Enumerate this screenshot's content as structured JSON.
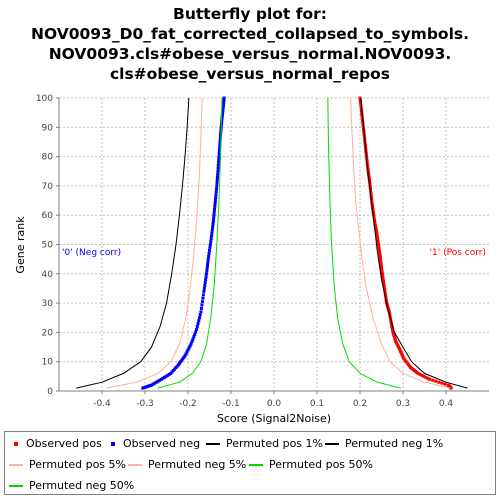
{
  "title_lines": [
    "Butterfly plot for:",
    "NOV0093_D0_fat_corrected_collapsed_to_symbols.",
    "NOV0093.cls#obese_versus_normal.NOV0093.",
    "cls#obese_versus_normal_repos"
  ],
  "colors": {
    "observed_pos": "#ff0000",
    "observed_neg": "#0000ff",
    "permuted_1": "#000000",
    "permuted_5": "#ffb0a0",
    "permuted_50": "#00dd00",
    "grid": "#c0c0c0"
  },
  "chart_data": {
    "type": "line",
    "xlabel": "Score (Signal2Noise)",
    "ylabel": "Gene rank",
    "xlim": [
      -0.5,
      0.5
    ],
    "ylim": [
      0,
      100
    ],
    "xticks": [
      -0.4,
      -0.3,
      -0.2,
      -0.1,
      0.0,
      0.1,
      0.2,
      0.3,
      0.4
    ],
    "xtick_labels": [
      "-0.4",
      "-0.3",
      "-0.2",
      "-0.1",
      "0.0",
      "0.1",
      "0.2",
      "0.3",
      "0.4"
    ],
    "yticks": [
      0,
      10,
      20,
      30,
      40,
      50,
      60,
      70,
      80,
      90,
      100
    ],
    "ytick_labels": [
      "0",
      "10",
      "20",
      "30",
      "40",
      "50",
      "60",
      "70",
      "80",
      "90",
      "100"
    ],
    "grid": true,
    "annotations": {
      "neg": "'0' (Neg corr)",
      "pos": "'1' (Pos corr)"
    },
    "series": [
      {
        "name": "Observed pos",
        "kind": "points",
        "color_key": "observed_pos",
        "x": [
          0.412,
          0.405,
          0.362,
          0.335,
          0.318,
          0.302,
          0.293,
          0.283,
          0.277,
          0.273,
          0.268,
          0.262,
          0.258,
          0.254,
          0.25,
          0.247,
          0.243,
          0.239,
          0.235,
          0.231,
          0.228,
          0.225,
          0.222,
          0.219,
          0.216,
          0.213,
          0.21,
          0.207,
          0.204,
          0.2
        ],
        "y": [
          1,
          2,
          4,
          6,
          8,
          11,
          14,
          17,
          20,
          23,
          27,
          30,
          34,
          38,
          42,
          46,
          50,
          54,
          57,
          61,
          64,
          68,
          72,
          75,
          79,
          83,
          87,
          91,
          95,
          100
        ]
      },
      {
        "name": "Observed neg",
        "kind": "points",
        "color_key": "observed_neg",
        "x": [
          -0.305,
          -0.285,
          -0.262,
          -0.24,
          -0.222,
          -0.207,
          -0.193,
          -0.18,
          -0.17,
          -0.163,
          -0.157,
          -0.152,
          -0.146,
          -0.141,
          -0.137,
          -0.133,
          -0.13,
          -0.127,
          -0.124,
          -0.121,
          -0.118,
          -0.116
        ],
        "y": [
          1,
          2,
          4,
          6,
          9,
          12,
          16,
          21,
          27,
          34,
          40,
          46,
          52,
          58,
          64,
          70,
          76,
          82,
          88,
          93,
          97,
          100
        ]
      },
      {
        "name": "Permuted pos 1%",
        "kind": "line",
        "color_key": "permuted_1",
        "x": [
          0.45,
          0.4,
          0.35,
          0.32,
          0.3,
          0.28,
          0.265,
          0.25,
          0.24,
          0.232,
          0.224,
          0.216,
          0.21,
          0.205,
          0.202
        ],
        "y": [
          1,
          3,
          6,
          10,
          15,
          20,
          28,
          38,
          48,
          58,
          68,
          78,
          88,
          95,
          100
        ]
      },
      {
        "name": "Permuted neg 1%",
        "kind": "line",
        "color_key": "permuted_1",
        "x": [
          -0.46,
          -0.4,
          -0.35,
          -0.31,
          -0.285,
          -0.265,
          -0.25,
          -0.238,
          -0.228,
          -0.22,
          -0.213,
          -0.207,
          -0.202,
          -0.198
        ],
        "y": [
          1,
          3,
          6,
          10,
          15,
          22,
          30,
          40,
          50,
          60,
          70,
          80,
          90,
          100
        ]
      },
      {
        "name": "Permuted pos 5%",
        "kind": "line",
        "color_key": "permuted_5",
        "x": [
          0.41,
          0.35,
          0.3,
          0.27,
          0.25,
          0.23,
          0.215,
          0.205,
          0.197,
          0.19,
          0.185,
          0.181,
          0.178
        ],
        "y": [
          1,
          3,
          6,
          10,
          16,
          25,
          35,
          45,
          55,
          65,
          77,
          90,
          100
        ]
      },
      {
        "name": "Permuted neg 5%",
        "kind": "line",
        "color_key": "permuted_5",
        "x": [
          -0.39,
          -0.32,
          -0.27,
          -0.24,
          -0.22,
          -0.205,
          -0.195,
          -0.186,
          -0.179,
          -0.174,
          -0.17,
          -0.167
        ],
        "y": [
          1,
          3,
          6,
          10,
          16,
          25,
          35,
          47,
          60,
          73,
          87,
          100
        ]
      },
      {
        "name": "Permuted pos 50%",
        "kind": "line",
        "color_key": "permuted_50",
        "x": [
          0.295,
          0.24,
          0.2,
          0.175,
          0.16,
          0.148,
          0.14,
          0.134,
          0.13,
          0.127,
          0.125
        ],
        "y": [
          1,
          3,
          6,
          10,
          16,
          25,
          36,
          50,
          65,
          82,
          100
        ]
      },
      {
        "name": "Permuted neg 50%",
        "kind": "line",
        "color_key": "permuted_50",
        "x": [
          -0.27,
          -0.22,
          -0.19,
          -0.17,
          -0.157,
          -0.147,
          -0.139,
          -0.133,
          -0.128,
          -0.124,
          -0.121
        ],
        "y": [
          1,
          3,
          6,
          10,
          16,
          25,
          36,
          50,
          65,
          82,
          100
        ]
      }
    ]
  },
  "legend": [
    {
      "label": "Observed pos",
      "kind": "dot",
      "color_key": "observed_pos"
    },
    {
      "label": "Observed neg",
      "kind": "dot",
      "color_key": "observed_neg"
    },
    {
      "label": "Permuted pos 1%",
      "kind": "line",
      "color_key": "permuted_1"
    },
    {
      "label": "Permuted neg 1%",
      "kind": "line",
      "color_key": "permuted_1"
    },
    {
      "label": "Permuted pos 5%",
      "kind": "line",
      "color_key": "permuted_5"
    },
    {
      "label": "Permuted neg 5%",
      "kind": "line",
      "color_key": "permuted_5"
    },
    {
      "label": "Permuted pos 50%",
      "kind": "line",
      "color_key": "permuted_50"
    },
    {
      "label": "Permuted neg 50%",
      "kind": "line",
      "color_key": "permuted_50"
    }
  ]
}
